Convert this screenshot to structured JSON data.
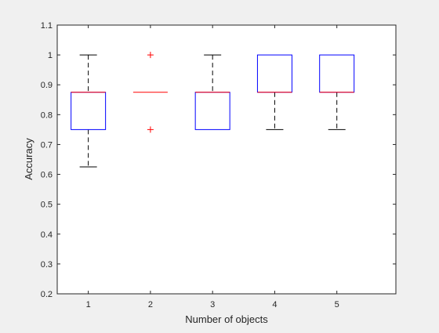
{
  "chart_data": {
    "type": "box",
    "title": "",
    "xlabel": "Number of objects",
    "ylabel": "Accuracy",
    "ylim": [
      0.2,
      1.1
    ],
    "yticks": [
      "0.2",
      "0.3",
      "0.4",
      "0.5",
      "0.6",
      "0.7",
      "0.8",
      "0.9",
      "1",
      "1.1"
    ],
    "grid": false,
    "categories": [
      "1",
      "2",
      "3",
      "4",
      "5"
    ],
    "boxes": [
      {
        "category": "1",
        "whisker_low": 0.625,
        "q1": 0.75,
        "median": 0.875,
        "q3": 0.875,
        "whisker_high": 1.0,
        "outliers": []
      },
      {
        "category": "2",
        "whisker_low": 0.875,
        "q1": 0.875,
        "median": 0.875,
        "q3": 0.875,
        "whisker_high": 0.875,
        "outliers": [
          0.75,
          1.0
        ]
      },
      {
        "category": "3",
        "whisker_low": 0.75,
        "q1": 0.75,
        "median": 0.875,
        "q3": 0.875,
        "whisker_high": 1.0,
        "outliers": []
      },
      {
        "category": "4",
        "whisker_low": 0.75,
        "q1": 0.875,
        "median": 0.875,
        "q3": 1.0,
        "whisker_high": 1.0,
        "outliers": []
      },
      {
        "category": "5",
        "whisker_low": 0.75,
        "q1": 0.875,
        "median": 0.875,
        "q3": 1.0,
        "whisker_high": 1.0,
        "outliers": []
      }
    ],
    "colors": {
      "box": "#0000ff",
      "median": "#ff0000",
      "whisker": "#000000",
      "outlier": "#ff0000",
      "axes_bg": "#ffffff",
      "figure_bg": "#f0f0f0"
    }
  }
}
